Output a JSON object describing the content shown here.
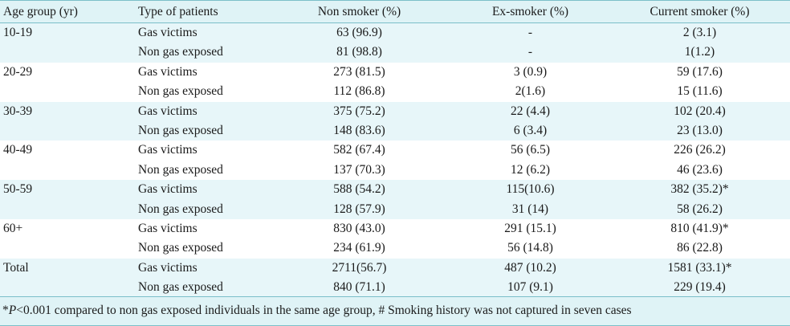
{
  "columns": [
    "Age group (yr)",
    "Type of patients",
    "Non smoker (%)",
    "Ex-smoker (%)",
    "Current smoker (%)"
  ],
  "rows": [
    {
      "age": "10-19",
      "type": "Gas victims",
      "non": "63 (96.9)",
      "ex": "-",
      "cur": "2 (3.1)"
    },
    {
      "age": "",
      "type": "Non gas exposed",
      "non": "81 (98.8)",
      "ex": "-",
      "cur": "1(1.2)"
    },
    {
      "age": "20-29",
      "type": "Gas victims",
      "non": "273 (81.5)",
      "ex": "3 (0.9)",
      "cur": "59 (17.6)"
    },
    {
      "age": "",
      "type": "Non gas exposed",
      "non": "112 (86.8)",
      "ex": "2(1.6)",
      "cur": "15 (11.6)"
    },
    {
      "age": "30-39",
      "type": "Gas victims",
      "non": "375 (75.2)",
      "ex": "22 (4.4)",
      "cur": "102 (20.4)"
    },
    {
      "age": "",
      "type": "Non gas exposed",
      "non": "148 (83.6)",
      "ex": "6 (3.4)",
      "cur": "23 (13.0)"
    },
    {
      "age": "40-49",
      "type": "Gas victims",
      "non": "582 (67.4)",
      "ex": "56 (6.5)",
      "cur": "226 (26.2)"
    },
    {
      "age": "",
      "type": "Non gas exposed",
      "non": "137 (70.3)",
      "ex": "12 (6.2)",
      "cur": "46 (23.6)"
    },
    {
      "age": "50-59",
      "type": "Gas victims",
      "non": "588 (54.2)",
      "ex": "115(10.6)",
      "cur": "382 (35.2)*"
    },
    {
      "age": "",
      "type": "Non gas exposed",
      "non": "128 (57.9)",
      "ex": "31 (14)",
      "cur": "58 (26.2)"
    },
    {
      "age": "60+",
      "type": "Gas victims",
      "non": "830 (43.0)",
      "ex": "291 (15.1)",
      "cur": "810 (41.9)*"
    },
    {
      "age": "",
      "type": "Non gas exposed",
      "non": "234 (61.9)",
      "ex": "56 (14.8)",
      "cur": "86 (22.8)"
    },
    {
      "age": "Total",
      "type": "Gas victims",
      "non": "2711(56.7)",
      "ex": "487 (10.2)",
      "cur": "1581 (33.1)*"
    },
    {
      "age": "",
      "type": "Non gas exposed",
      "non": "840 (71.1)",
      "ex": "107 (9.1)",
      "cur": "229 (19.4)"
    }
  ],
  "footnote": {
    "star": "*",
    "p_italic": "P",
    "rest": "<0.001 compared to non gas exposed individuals in the same age group, # Smoking history was not captured in seven cases"
  },
  "colors": {
    "header_bg": "#dff3f6",
    "row_shade": "#e7f6f9",
    "rule": "#7bbfc9"
  }
}
